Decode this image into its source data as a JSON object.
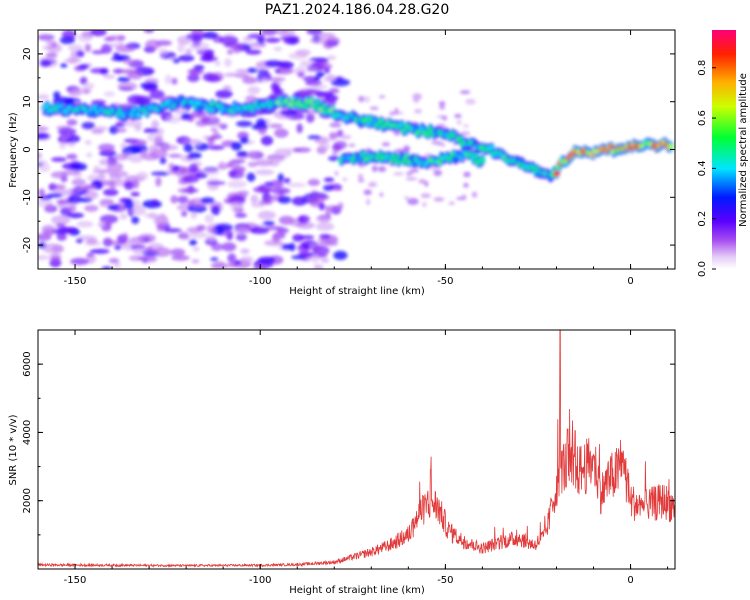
{
  "title": "PAZ1.2024.186.04.28.G20",
  "chart_data": [
    {
      "type": "heatmap",
      "xlabel": "Height of straight line (km)",
      "ylabel": "Frequency (Hz)",
      "xlim": [
        -160,
        12
      ],
      "ylim": [
        -25,
        25
      ],
      "xticks": [
        -150,
        -100,
        -50,
        0
      ],
      "yticks": [
        -20,
        -10,
        0,
        10,
        20
      ],
      "colorbar": {
        "label": "Normalized spectral amplitude",
        "range": [
          0,
          0.95
        ],
        "ticks": [
          0.0,
          0.2,
          0.4,
          0.6,
          0.8
        ]
      },
      "ridge": [
        {
          "x": -158,
          "y": 8.5
        },
        {
          "x": -150,
          "y": 8.5
        },
        {
          "x": -143,
          "y": 8.0
        },
        {
          "x": -135,
          "y": 7.5
        },
        {
          "x": -128,
          "y": 8.5
        },
        {
          "x": -122,
          "y": 10.0
        },
        {
          "x": -115,
          "y": 9.0
        },
        {
          "x": -105,
          "y": 8.5
        },
        {
          "x": -98,
          "y": 9.5
        },
        {
          "x": -92,
          "y": 10.0
        },
        {
          "x": -85,
          "y": 9.5
        },
        {
          "x": -80,
          "y": 7.5
        },
        {
          "x": -72,
          "y": 6.0
        },
        {
          "x": -65,
          "y": 5.0
        },
        {
          "x": -58,
          "y": 4.0
        },
        {
          "x": -50,
          "y": 3.5
        },
        {
          "x": -45,
          "y": 1.5
        },
        {
          "x": -40,
          "y": 0.5
        },
        {
          "x": -35,
          "y": -1.0
        },
        {
          "x": -30,
          "y": -3.0
        },
        {
          "x": -25,
          "y": -4.5
        },
        {
          "x": -21,
          "y": -5.5
        },
        {
          "x": -18,
          "y": -2.5
        },
        {
          "x": -15,
          "y": -0.5
        },
        {
          "x": -10,
          "y": -0.5
        },
        {
          "x": -5,
          "y": 0.0
        },
        {
          "x": 0,
          "y": 0.5
        },
        {
          "x": 5,
          "y": 1.0
        },
        {
          "x": 10,
          "y": 1.0
        }
      ],
      "secondary_ridge": [
        {
          "x": -78,
          "y": -2.0
        },
        {
          "x": -70,
          "y": -1.5
        },
        {
          "x": -62,
          "y": -2.0
        },
        {
          "x": -55,
          "y": -2.5
        },
        {
          "x": -50,
          "y": -2.0
        },
        {
          "x": -45,
          "y": -1.0
        },
        {
          "x": -40,
          "y": -2.5
        }
      ]
    },
    {
      "type": "line",
      "xlabel": "Height of straight line (km)",
      "ylabel": "SNR (10 * v/v)",
      "xlim": [
        -160,
        12
      ],
      "ylim": [
        0,
        7000
      ],
      "xticks": [
        -150,
        -100,
        -50,
        0
      ],
      "yticks": [
        2000,
        4000,
        6000
      ],
      "series": [
        {
          "color": "#e03a3a",
          "envelope": [
            {
              "x": -160,
              "y": 120
            },
            {
              "x": -140,
              "y": 110
            },
            {
              "x": -120,
              "y": 100
            },
            {
              "x": -100,
              "y": 110
            },
            {
              "x": -90,
              "y": 130
            },
            {
              "x": -80,
              "y": 200
            },
            {
              "x": -75,
              "y": 350
            },
            {
              "x": -70,
              "y": 500
            },
            {
              "x": -65,
              "y": 700
            },
            {
              "x": -60,
              "y": 1000
            },
            {
              "x": -57,
              "y": 1600
            },
            {
              "x": -54,
              "y": 2000
            },
            {
              "x": -52,
              "y": 1800
            },
            {
              "x": -49,
              "y": 1100
            },
            {
              "x": -45,
              "y": 800
            },
            {
              "x": -40,
              "y": 600
            },
            {
              "x": -35,
              "y": 800
            },
            {
              "x": -30,
              "y": 900
            },
            {
              "x": -26,
              "y": 700
            },
            {
              "x": -23,
              "y": 1000
            },
            {
              "x": -21,
              "y": 1900
            },
            {
              "x": -19,
              "y": 3000
            },
            {
              "x": -17,
              "y": 3000
            },
            {
              "x": -15,
              "y": 2800
            },
            {
              "x": -12,
              "y": 3000
            },
            {
              "x": -10,
              "y": 3100
            },
            {
              "x": -9,
              "y": 2800
            },
            {
              "x": -8,
              "y": 2200
            },
            {
              "x": -6,
              "y": 2600
            },
            {
              "x": -4,
              "y": 2800
            },
            {
              "x": -2,
              "y": 3000
            },
            {
              "x": 0,
              "y": 2000
            },
            {
              "x": 3,
              "y": 1800
            },
            {
              "x": 6,
              "y": 1900
            },
            {
              "x": 9,
              "y": 2000
            },
            {
              "x": 12,
              "y": 1800
            }
          ],
          "peaks": [
            {
              "x": -54,
              "y": 2900
            },
            {
              "x": -19,
              "y": 7000
            },
            {
              "x": -17,
              "y": 4100
            },
            {
              "x": -15,
              "y": 4050
            },
            {
              "x": -10,
              "y": 3350
            },
            {
              "x": -2,
              "y": 3450
            }
          ]
        }
      ]
    }
  ]
}
